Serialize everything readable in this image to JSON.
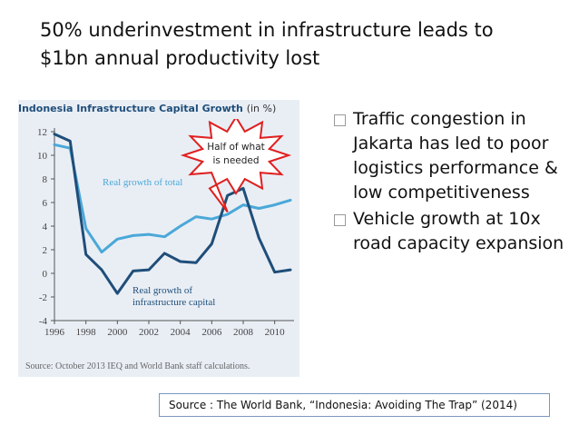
{
  "slide": {
    "title_line1": "50% underinvestment in infrastructure leads to",
    "title_line2": "$1bn annual productivity lost"
  },
  "chart_data": {
    "type": "line",
    "title": "Indonesia Infrastructure Capital Growth",
    "title_unit": "(in %)",
    "x": [
      1996,
      1997,
      1998,
      1999,
      2000,
      2001,
      2002,
      2003,
      2004,
      2005,
      2006,
      2007,
      2008,
      2009,
      2010,
      2011
    ],
    "xticks": [
      1996,
      1998,
      2000,
      2002,
      2004,
      2006,
      2008,
      2010
    ],
    "yticks": [
      12,
      10,
      8,
      6,
      4,
      2,
      0,
      -2,
      -4
    ],
    "ylim": [
      -4,
      12
    ],
    "grid": false,
    "series": [
      {
        "name": "Real growth of total",
        "color": "#4aa8d8",
        "values": [
          10.9,
          10.6,
          3.8,
          1.8,
          2.9,
          3.2,
          3.3,
          3.1,
          4.0,
          4.8,
          4.6,
          5.0,
          5.8,
          5.5,
          5.8,
          6.2
        ]
      },
      {
        "name": "Real growth of infrastructure capital",
        "label_line1": "Real growth of",
        "label_line2": "infrastructure capital",
        "color": "#1f4e79",
        "values": [
          11.8,
          11.2,
          1.6,
          0.3,
          -1.7,
          0.2,
          0.3,
          1.7,
          1.0,
          0.9,
          2.5,
          6.6,
          7.2,
          3.0,
          0.1,
          0.3
        ]
      }
    ],
    "callout": "Half of what is needed",
    "callout_line1": "Half of what",
    "callout_line2": "is needed",
    "source": "Source: October 2013 IEQ and World Bank staff calculations."
  },
  "bullets": [
    "Traffic congestion in Jakarta has led to poor logistics performance & low competitiveness",
    "Vehicle growth at 10x road capacity expansion"
  ],
  "source_footer": "Source : The World Bank, “Indonesia: Avoiding The Trap” (2014)",
  "colors": {
    "panel": "#e9eef5",
    "callout_border": "#e02020",
    "axis": "#555555"
  }
}
